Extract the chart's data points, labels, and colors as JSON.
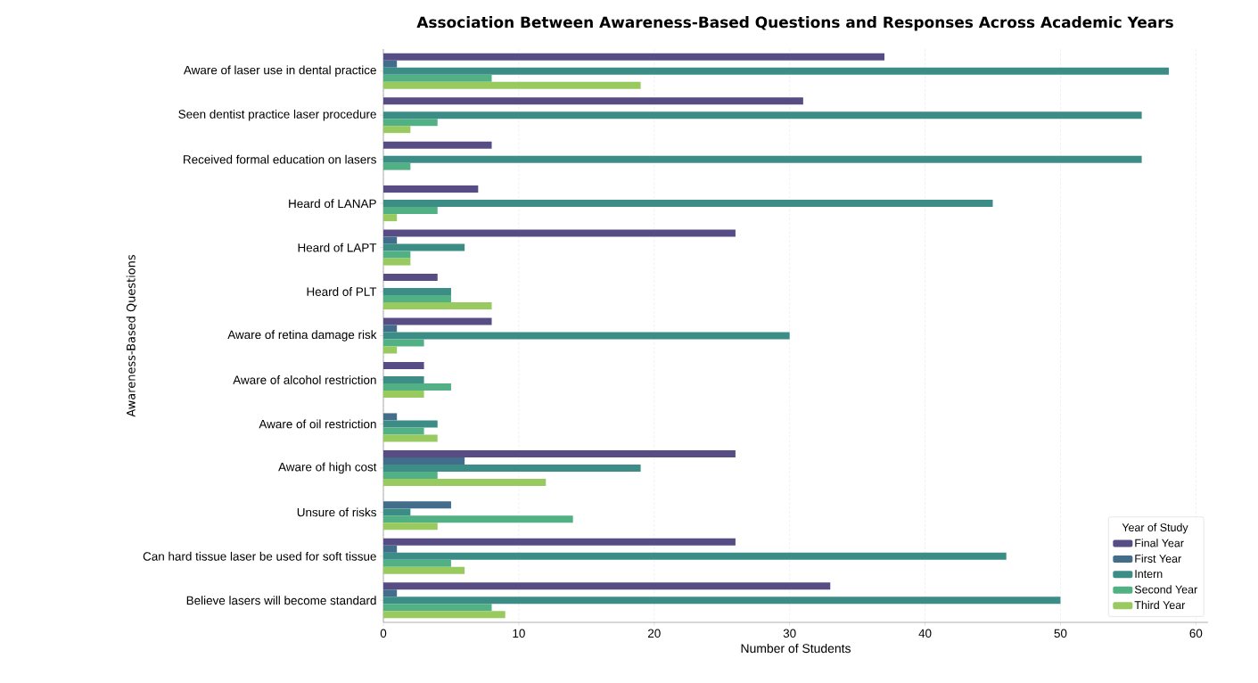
{
  "chart_data": {
    "type": "bar",
    "orientation": "horizontal",
    "title": "Association Between Awareness-Based Questions and Responses Across Academic Years",
    "xlabel": "Number of Students",
    "ylabel": "Awareness-Based Questions",
    "categories": [
      "Aware of laser use in dental practice",
      "Seen dentist practice laser procedure",
      "Received formal education on lasers",
      "Heard of LANAP",
      "Heard of LAPT",
      "Heard of PLT",
      "Aware of retina damage risk",
      "Aware of alcohol restriction",
      "Aware of oil restriction",
      "Aware of high cost",
      "Unsure of risks",
      "Can hard tissue laser be used for soft tissue",
      "Believe lasers will become standard"
    ],
    "series": [
      {
        "name": "Final Year",
        "color": "#574c84",
        "values": [
          37,
          31,
          8,
          7,
          26,
          4,
          8,
          3,
          0,
          26,
          0,
          26,
          33
        ]
      },
      {
        "name": "First Year",
        "color": "#426d8b",
        "values": [
          1,
          0,
          0,
          0,
          1,
          0,
          1,
          0,
          1,
          6,
          5,
          1,
          1
        ]
      },
      {
        "name": "Intern",
        "color": "#3d8d87",
        "values": [
          58,
          56,
          56,
          45,
          6,
          5,
          30,
          3,
          4,
          19,
          2,
          46,
          50
        ]
      },
      {
        "name": "Second Year",
        "color": "#52b085",
        "values": [
          8,
          4,
          2,
          4,
          2,
          5,
          3,
          5,
          3,
          4,
          14,
          5,
          8
        ]
      },
      {
        "name": "Third Year",
        "color": "#98ca60",
        "values": [
          19,
          2,
          0,
          1,
          2,
          8,
          1,
          3,
          4,
          12,
          4,
          6,
          9
        ]
      }
    ],
    "xlim": [
      0,
      60.9
    ],
    "xticks": [
      0,
      10,
      20,
      30,
      40,
      50,
      60
    ],
    "grid": "x",
    "legend": "bottom right",
    "legend_title": "Year of Study"
  }
}
